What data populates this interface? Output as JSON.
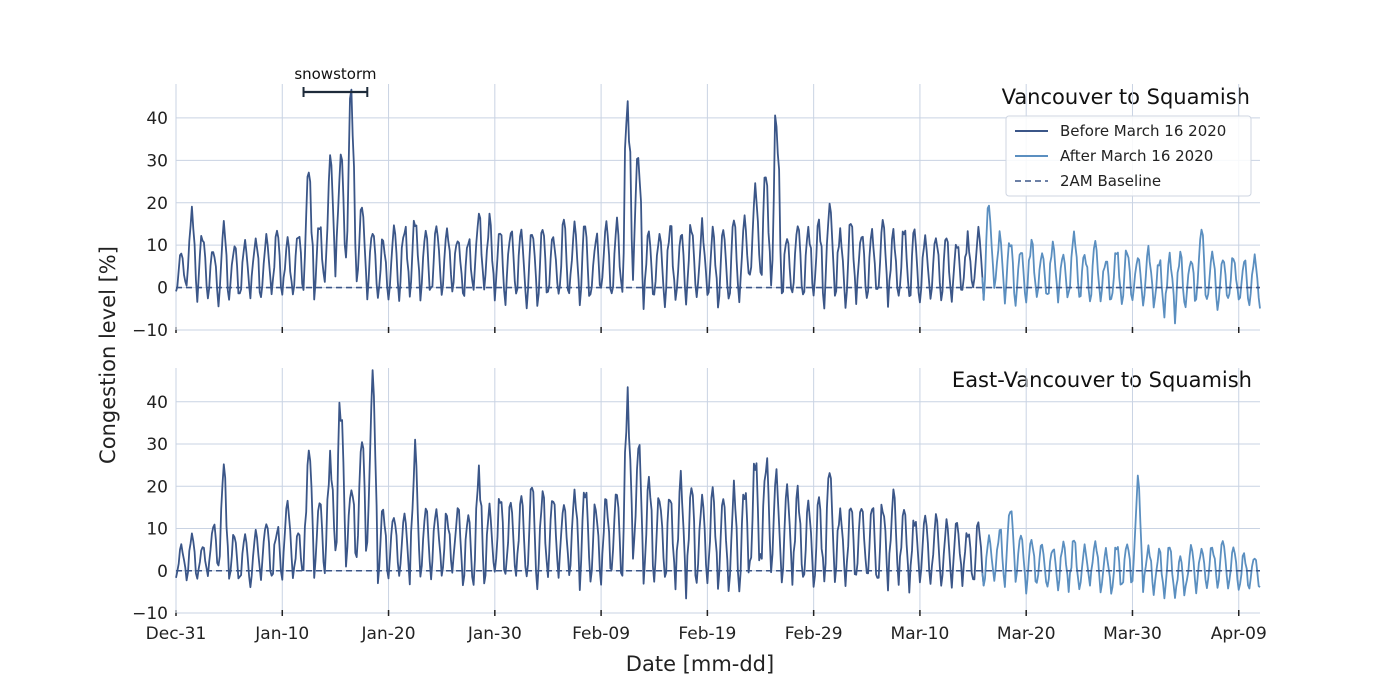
{
  "chart_data": {
    "type": "line",
    "xlabel": "Date [mm-dd]",
    "ylabel": "Congestion level [%]",
    "x_range": [
      "2019-12-31",
      "2020-04-11"
    ],
    "x_ticks": [
      "Dec-31",
      "Jan-10",
      "Jan-20",
      "Jan-30",
      "Feb-09",
      "Feb-19",
      "Feb-29",
      "Mar-10",
      "Mar-20",
      "Mar-30",
      "Apr-09"
    ],
    "y_ticks": [
      -10,
      0,
      10,
      20,
      30,
      40
    ],
    "ylim": [
      -10,
      48
    ],
    "grid": true,
    "legend_position": "upper-right of top panel",
    "colors": {
      "before": "#3b5688",
      "after": "#5b8fc0",
      "baseline": "#3b5688"
    },
    "annotation": {
      "text": "snowstorm",
      "start": "2020-01-12",
      "end": "2020-01-18"
    },
    "panels": [
      {
        "title": "Vancouver to Squamish",
        "series": [
          {
            "name": "Before March 16 2020",
            "style": "solid",
            "range": [
              "2019-12-31",
              "2020-03-16"
            ]
          },
          {
            "name": "After March 16 2020",
            "style": "solid",
            "range": [
              "2020-03-16",
              "2020-04-11"
            ]
          },
          {
            "name": "2AM Baseline",
            "style": "dashed",
            "value": 0
          }
        ],
        "daily_peaks": [
          7,
          17,
          12,
          8,
          13,
          9,
          10,
          12,
          11,
          13,
          10,
          12,
          26,
          14,
          29,
          33,
          44,
          19,
          12,
          11,
          13,
          14,
          15,
          12,
          14,
          13,
          12,
          11,
          16,
          15,
          12,
          13,
          12,
          14,
          13,
          12,
          14,
          13,
          15,
          12,
          13,
          14,
          44,
          31,
          12,
          13,
          14,
          13,
          15,
          14,
          12,
          13,
          14,
          15,
          22,
          27,
          41,
          12,
          13,
          14,
          15,
          20,
          13,
          14,
          12,
          13,
          14,
          12,
          13,
          12,
          11,
          12,
          11,
          10,
          11,
          12,
          18,
          11,
          10,
          9,
          10,
          8,
          9,
          8,
          12,
          8,
          9,
          7,
          8,
          9,
          7,
          8,
          6,
          7,
          8,
          7,
          12,
          8,
          6,
          7,
          6
        ],
        "daily_troughs": [
          -2,
          -3,
          -4,
          -3,
          -5,
          -4,
          -3,
          -4,
          -3,
          -4,
          -3,
          -4,
          -2,
          -3,
          -2,
          -3,
          -1,
          -2,
          -3,
          -4,
          -3,
          -4,
          -3,
          -4,
          -3,
          -4,
          -3,
          -5,
          -4,
          -3,
          -4,
          -5,
          -4,
          -6,
          -5,
          -4,
          -5,
          -4,
          -7,
          -5,
          -4,
          -5,
          -3,
          -4,
          -5,
          -4,
          -5,
          -6,
          -5,
          -4,
          -5,
          -6,
          -5,
          -4,
          -3,
          -4,
          -3,
          -5,
          -4,
          -5,
          -6,
          -5,
          -4,
          -5,
          -4,
          -5,
          -4,
          -5,
          -6,
          -5,
          -4,
          -5,
          -4,
          -5,
          -4,
          -3,
          -4,
          -3,
          -4,
          -5,
          -4,
          -5,
          -4,
          -5,
          -4,
          -5,
          -6,
          -5,
          -4,
          -5,
          -4,
          -5,
          -6,
          -7,
          -9,
          -6,
          -5,
          -4,
          -5,
          -4,
          -5
        ]
      },
      {
        "title": "East-Vancouver to Squamish",
        "series": [
          {
            "name": "Before March 16 2020",
            "style": "solid",
            "range": [
              "2019-12-31",
              "2020-03-16"
            ]
          },
          {
            "name": "After March 16 2020",
            "style": "solid",
            "range": [
              "2020-03-16",
              "2020-04-11"
            ]
          },
          {
            "name": "2AM Baseline",
            "style": "dashed",
            "value": 0
          }
        ],
        "daily_peaks": [
          5,
          8,
          6,
          11,
          23,
          8,
          7,
          9,
          12,
          10,
          14,
          9,
          27,
          15,
          26,
          39,
          21,
          30,
          44,
          14,
          13,
          12,
          27,
          14,
          15,
          13,
          14,
          12,
          22,
          16,
          18,
          17,
          15,
          19,
          17,
          18,
          16,
          19,
          18,
          15,
          17,
          20,
          41,
          29,
          21,
          18,
          17,
          20,
          18,
          16,
          17,
          15,
          19,
          18,
          27,
          26,
          23,
          20,
          17,
          14,
          15,
          21,
          14,
          15,
          16,
          14,
          15,
          18,
          13,
          12,
          11,
          12,
          10,
          11,
          9,
          10,
          8,
          9,
          14,
          8,
          7,
          6,
          5,
          6,
          7,
          5,
          6,
          4,
          5,
          6,
          20,
          5,
          4,
          5,
          4,
          5,
          4,
          5,
          6,
          4,
          3
        ],
        "daily_troughs": [
          -2,
          -3,
          -3,
          -4,
          -3,
          -4,
          -3,
          -4,
          -3,
          -4,
          -3,
          -4,
          -2,
          -3,
          -2,
          -2,
          -1,
          -2,
          -1,
          -3,
          -4,
          -3,
          -4,
          -5,
          -4,
          -3,
          -4,
          -5,
          -4,
          -5,
          -6,
          -5,
          -4,
          -6,
          -5,
          -4,
          -5,
          -6,
          -5,
          -4,
          -5,
          -6,
          -3,
          -4,
          -5,
          -4,
          -5,
          -6,
          -7,
          -5,
          -4,
          -5,
          -6,
          -5,
          -4,
          -3,
          -4,
          -5,
          -4,
          -5,
          -6,
          -5,
          -4,
          -5,
          -4,
          -5,
          -6,
          -5,
          -4,
          -5,
          -4,
          -5,
          -6,
          -5,
          -4,
          -5,
          -4,
          -5,
          -4,
          -5,
          -6,
          -5,
          -4,
          -5,
          -6,
          -5,
          -4,
          -5,
          -6,
          -5,
          -3,
          -5,
          -6,
          -7,
          -9,
          -6,
          -5,
          -4,
          -5,
          -4,
          -5
        ]
      }
    ]
  }
}
